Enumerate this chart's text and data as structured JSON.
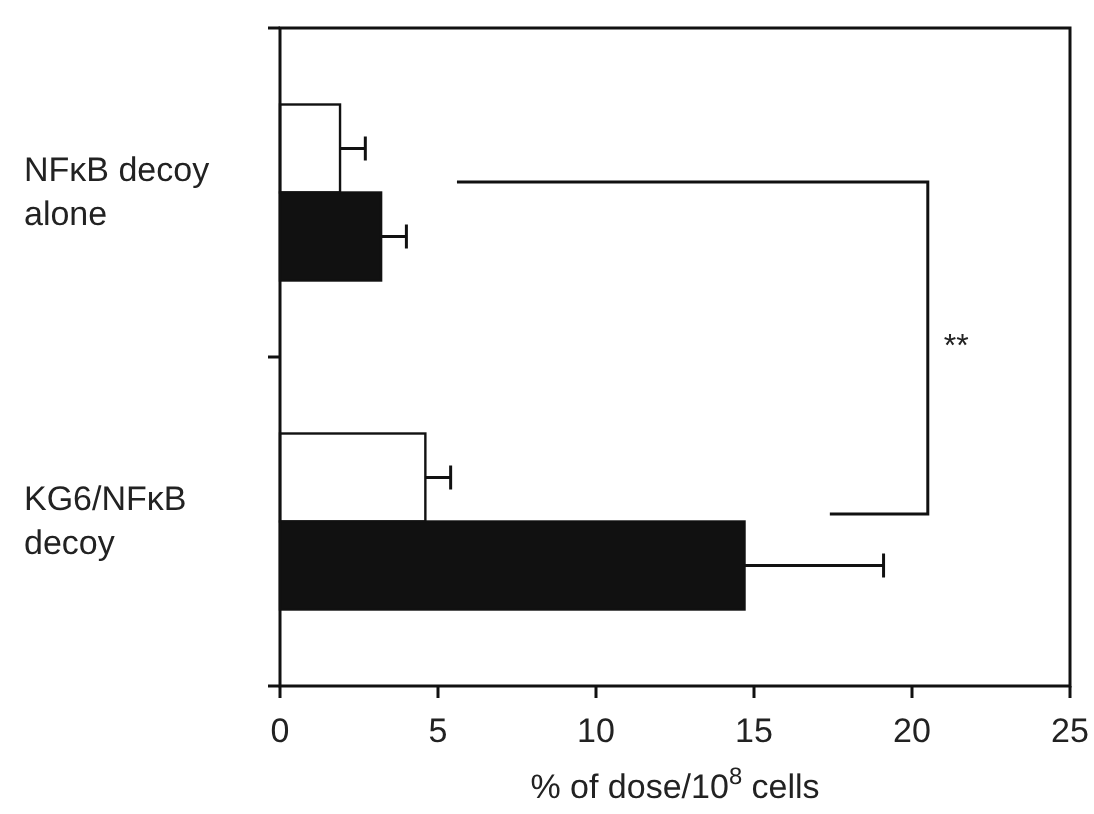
{
  "chart_data": {
    "type": "bar",
    "orientation": "horizontal",
    "xlabel": "% of dose/10$^{8}$ cells",
    "categories": [
      "NFκB decoy alone",
      "KG6/NFκB decoy"
    ],
    "series": [
      {
        "color": "#ffffff",
        "values": [
          1.9,
          4.6
        ],
        "errors": [
          0.8,
          0.8
        ]
      },
      {
        "color": "#111111",
        "values": [
          3.2,
          14.7
        ],
        "errors": [
          0.8,
          4.4
        ]
      }
    ],
    "xlim": [
      0,
      25
    ],
    "xticks": [
      0,
      5,
      10,
      15,
      20,
      25
    ],
    "annotations": [
      "**"
    ]
  }
}
